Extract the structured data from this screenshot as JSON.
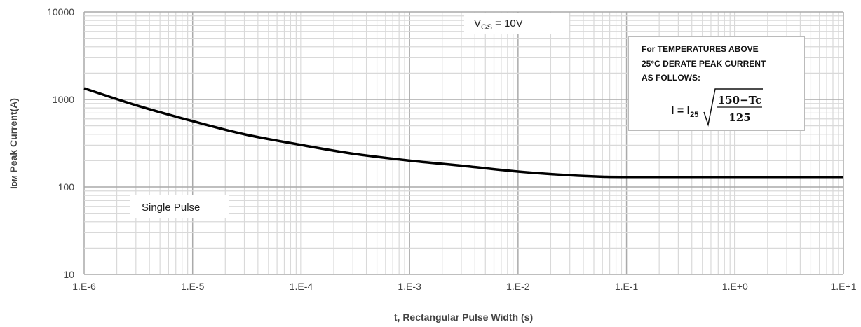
{
  "chart_data": {
    "type": "line",
    "xlabel": "t, Rectangular Pulse Width (s)",
    "ylabel": "IDM Peak Current(A)",
    "ylabel_parts": {
      "main": "I",
      "sub": "DM",
      "rest": " Peak Current(A)"
    },
    "xscale": "log",
    "yscale": "log",
    "xlim": [
      1e-06,
      10
    ],
    "ylim": [
      10,
      10000
    ],
    "xticks": [
      1e-06,
      1e-05,
      0.0001,
      0.001,
      0.01,
      0.1,
      1,
      10
    ],
    "xtick_labels": [
      "1.E-6",
      "1.E-5",
      "1.E-4",
      "1.E-3",
      "1.E-2",
      "1.E-1",
      "1.E+0",
      "1.E+1"
    ],
    "yticks": [
      10,
      100,
      1000,
      10000
    ],
    "ytick_labels": [
      "10",
      "100",
      "1000",
      "10000"
    ],
    "grid": true,
    "series": [
      {
        "x": [
          1e-06,
          3e-06,
          1e-05,
          3e-05,
          0.0001,
          0.0003,
          0.001,
          0.003,
          0.01,
          0.03,
          0.06,
          0.1,
          1,
          10
        ],
        "y": [
          1340,
          860,
          565,
          400,
          302,
          240,
          200,
          175,
          150,
          136,
          131,
          130,
          130,
          130
        ],
        "color": "#000000"
      }
    ],
    "annotations": {
      "vgs": {
        "main": "V",
        "sub": "GS",
        "rest": " = 10V"
      },
      "pulse": "Single Pulse",
      "derate": {
        "line1": "For TEMPERATURES ABOVE",
        "line2": "25°C DERATE PEAK CURRENT",
        "line3": "AS FOLLOWS:",
        "lhs": "I = I",
        "lhs_sub": "25",
        "num": "150−Tc",
        "den": "125"
      }
    }
  }
}
